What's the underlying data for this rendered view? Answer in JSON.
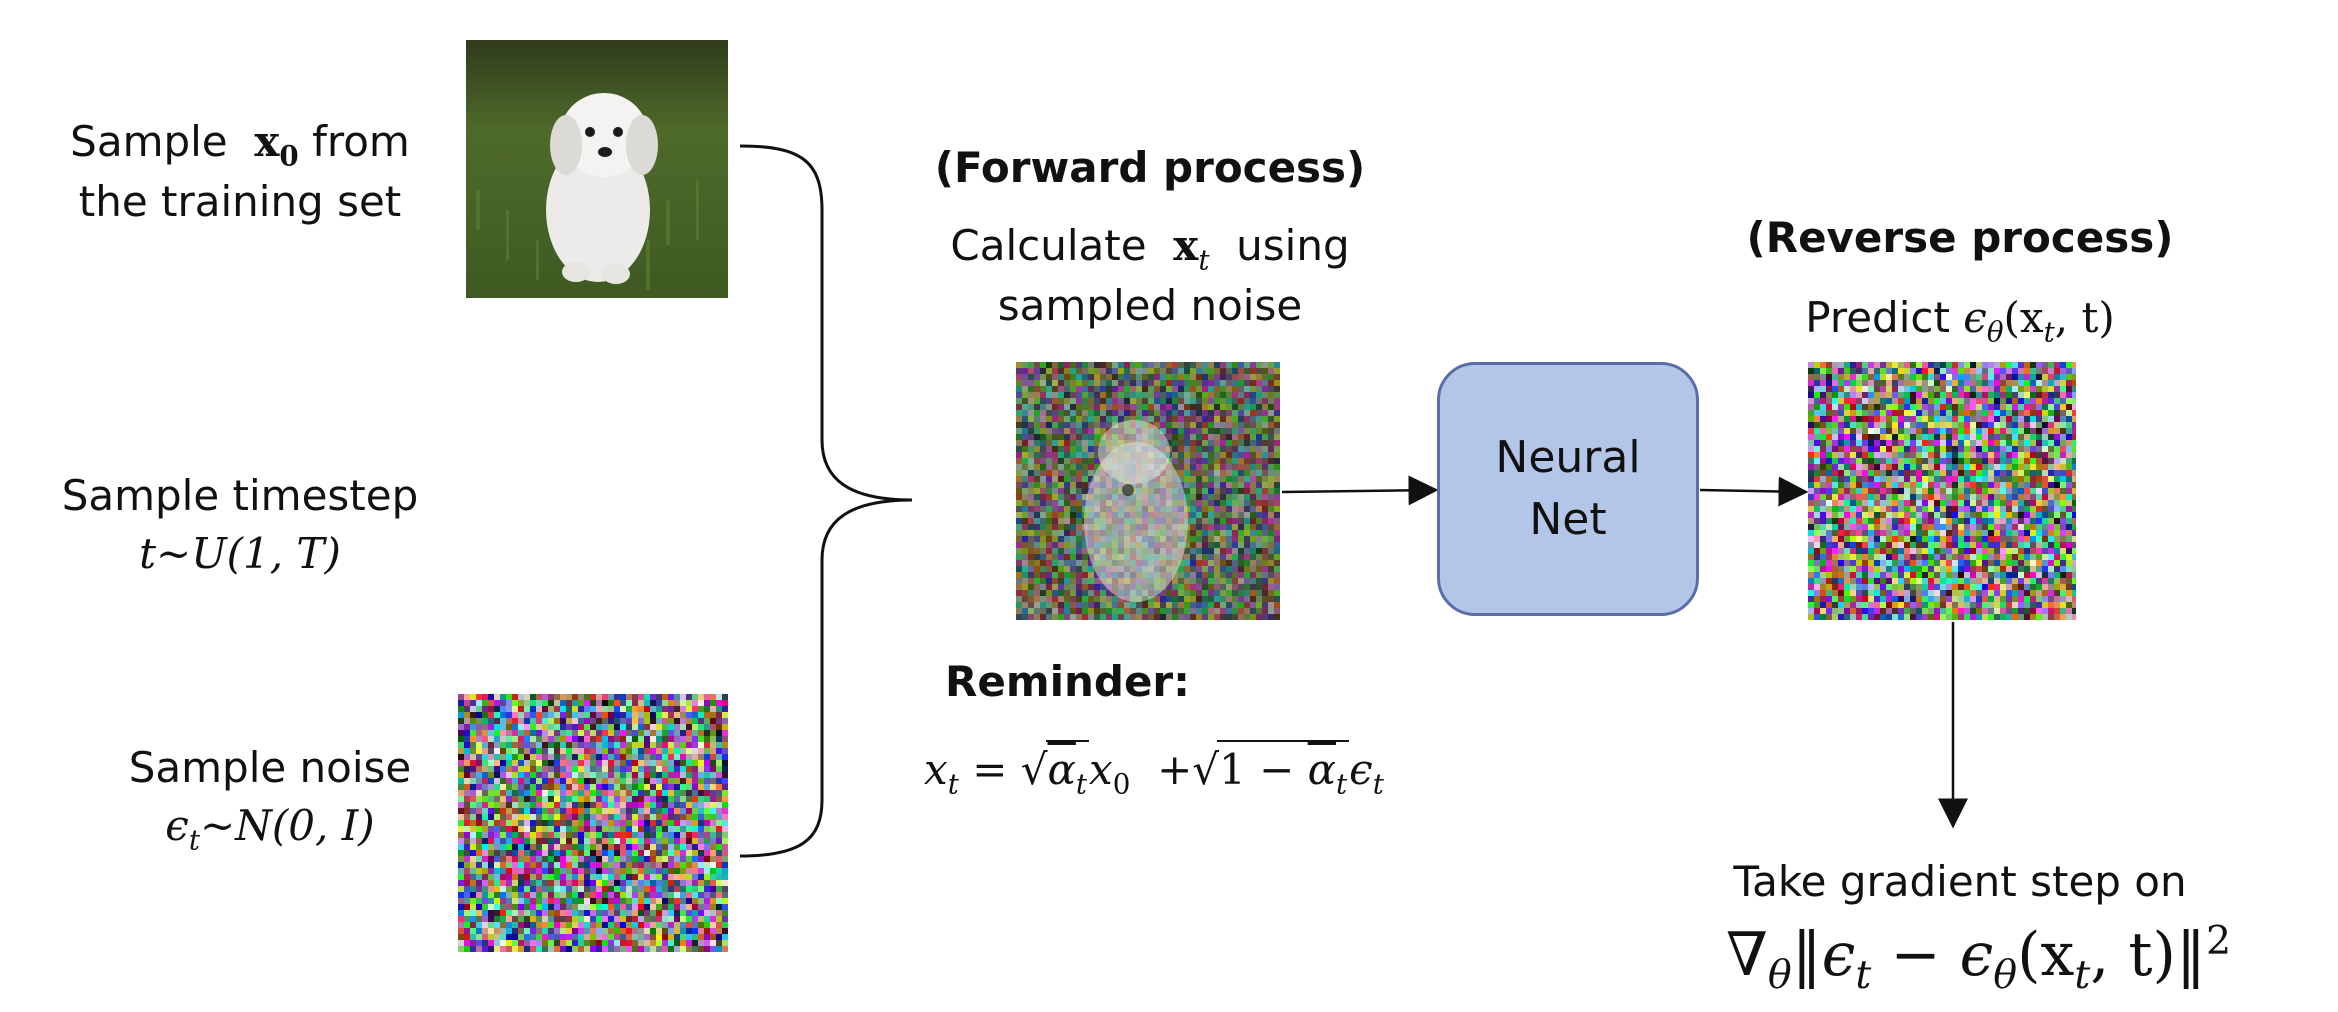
{
  "left": {
    "sample_x0": {
      "prefix": "Sample",
      "var": "x",
      "sub": "0",
      "suffix": "from",
      "line2": "the training set"
    },
    "sample_t": {
      "line1": "Sample timestep",
      "math": "t~U(1, T)"
    },
    "sample_noise": {
      "line1": "Sample noise",
      "eps": "ϵ",
      "sub": "t",
      "math_rest": "~N(0, I)"
    }
  },
  "forward": {
    "heading": "(Forward process)",
    "calc_prefix": "Calculate",
    "var": "x",
    "sub": "t",
    "calc_suffix": "using",
    "line2": "sampled noise"
  },
  "reminder": {
    "heading": "Reminder:",
    "lhs": "x",
    "lhs_sub": "t",
    "eq": "=",
    "alpha_bar": "α",
    "alpha_sub": "t",
    "x0": "x",
    "x0_sub": "0",
    "plus": "+",
    "one_minus": "1 − ",
    "eps": "ϵ",
    "eps_sub": "t"
  },
  "network": {
    "label": "Neural\nNet",
    "fill": "#b4c6e7",
    "stroke": "#5a6fa8"
  },
  "reverse": {
    "heading": "(Reverse process)",
    "predict": "Predict",
    "eps": "ϵ",
    "theta": "θ",
    "args": "(x",
    "args_sub": "t",
    "args_end": ", t)"
  },
  "gradient": {
    "line1": "Take gradient step on",
    "nabla": "∇",
    "theta": "θ",
    "open": "‖",
    "eps": "ϵ",
    "eps_sub": "t",
    "minus": " − ",
    "eps2": "ϵ",
    "theta2": "θ",
    "args": "(x",
    "args_sub": "t",
    "args_end": ", t)",
    "close": "‖",
    "power": "2"
  },
  "images": {
    "dog": "dog-photo",
    "noisy_dog": "noisy-dog-image",
    "noise_left": "gaussian-noise-image",
    "noise_right": "predicted-noise-image"
  }
}
